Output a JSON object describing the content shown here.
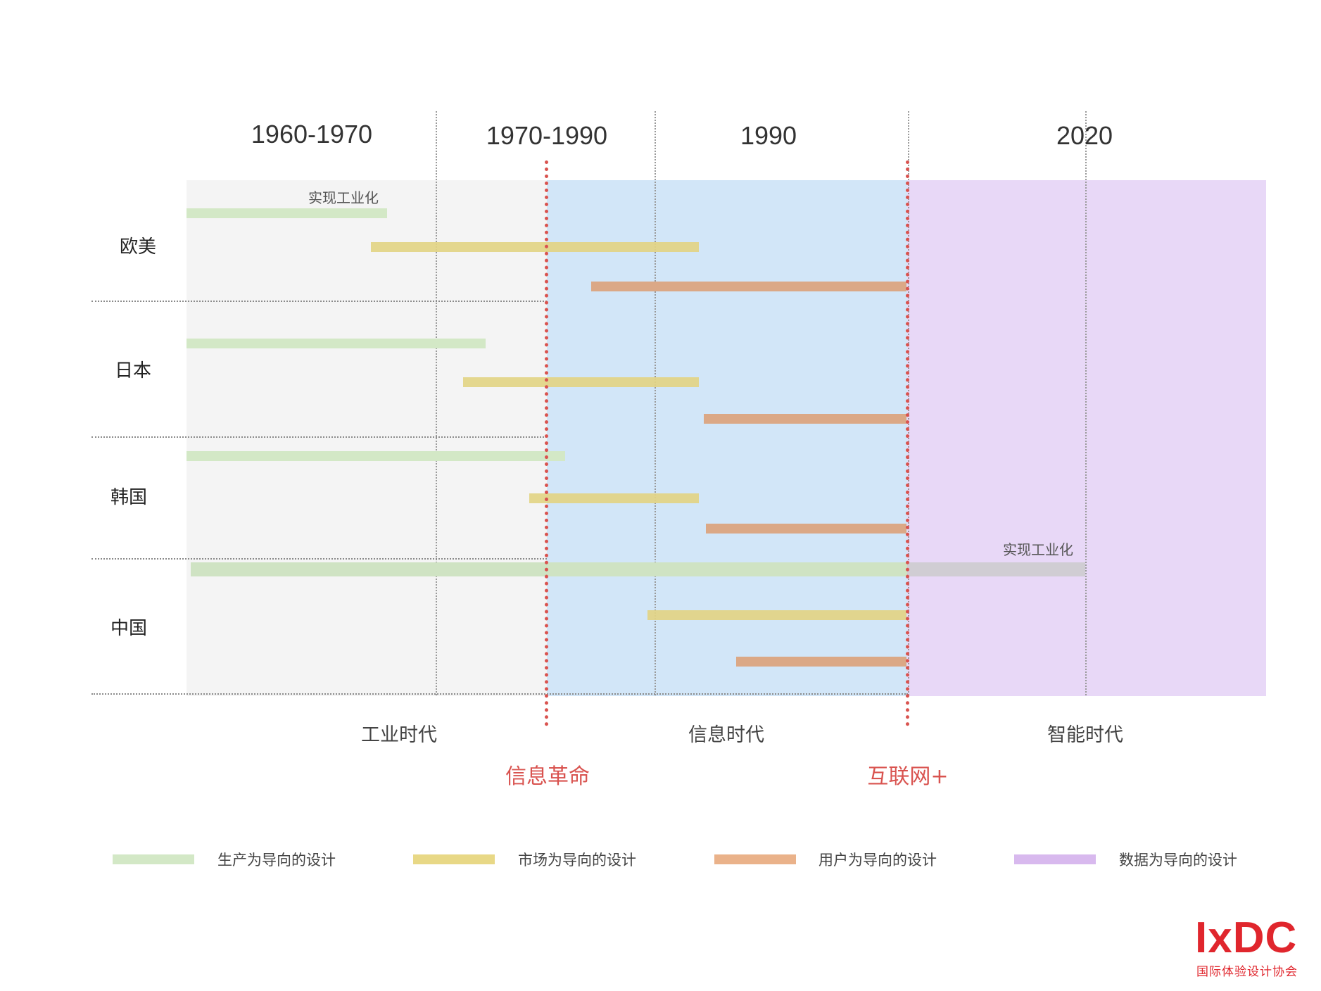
{
  "periods": [
    "1960-1970",
    "1970-1990",
    "1990",
    "2020"
  ],
  "regions": [
    "欧美",
    "日本",
    "韩国",
    "中国"
  ],
  "eras": [
    "工业时代",
    "信息时代",
    "智能时代"
  ],
  "events": [
    "信息革命",
    "互联网+"
  ],
  "notes": {
    "europe_industrialization": "实现工业化",
    "china_industrialization": "实现工业化"
  },
  "legend": [
    {
      "label": "生产为导向的设计",
      "color": "#d3e8c6"
    },
    {
      "label": "市场为导向的设计",
      "color": "#e8d886"
    },
    {
      "label": "用户为导向的设计",
      "color": "#eab28a"
    },
    {
      "label": "数据为导向的设计",
      "color": "#d8b9ee"
    }
  ],
  "background_colors": {
    "industrial": "#f4f4f4",
    "information": "#d2e6f8",
    "intelligent": "#e8d8f7",
    "event_line": "#d9534f"
  },
  "logo": {
    "mark": "IxDC",
    "subtitle": "国际体验设计协会"
  }
}
